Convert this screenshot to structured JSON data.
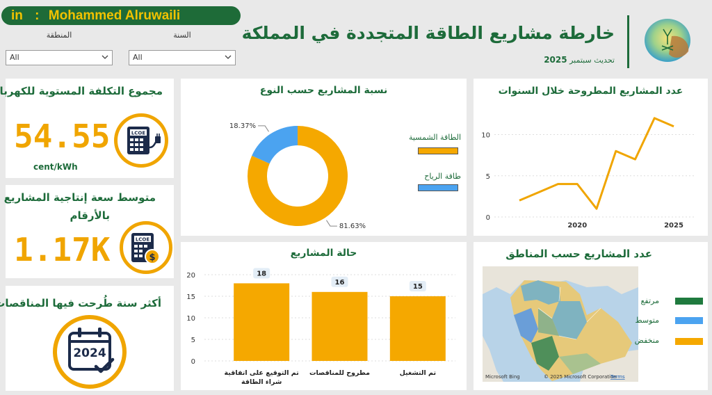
{
  "header": {
    "linkedin_label": "in",
    "linkedin_sep": ":",
    "author": "Mohammed Alruwaili",
    "title": "خارطة مشاريع الطاقة المتجددة في المملكة",
    "update_prefix": "تحديث سبتمبر",
    "update_year": "2025"
  },
  "filters": {
    "region": {
      "label": "المنطقة",
      "value": "All"
    },
    "year": {
      "label": "السنة",
      "value": "All"
    }
  },
  "kpis": {
    "lcoe": {
      "title": "مجموع التكلفة المستوية للكهرباء",
      "value": "54.55",
      "unit": "cent/kWh",
      "icon_label": "LCOE"
    },
    "capacity": {
      "title_line1": "متوسط سعة إنتاجية المشاريع",
      "title_line2": "بالأرقام",
      "value": "1.17K",
      "icon_label": "LCOE"
    },
    "top_year": {
      "title": "أكثر سنة طُرحت فيها المناقصات",
      "value": "2024"
    }
  },
  "colors": {
    "solar": "#f5a800",
    "wind": "#4ba3f0",
    "high": "#1f7a3e",
    "medium": "#4ba3f0",
    "low": "#f5a800",
    "brand": "#1d6b3a"
  },
  "chart_data": [
    {
      "id": "donut",
      "type": "pie",
      "title": "نسبة المشاريع حسب النوع",
      "slices": [
        {
          "name": "الطاقة الشمسية",
          "value": 81.63,
          "label": "81.63%"
        },
        {
          "name": "طاقة الرياح",
          "value": 18.37,
          "label": "18.37%"
        }
      ]
    },
    {
      "id": "line",
      "type": "line",
      "title": "عدد المشاريع المطروحة خلال السنوات",
      "x": [
        2017,
        2018,
        2019,
        2020,
        2021,
        2022,
        2023,
        2024,
        2025
      ],
      "values": [
        2,
        3,
        4,
        4,
        1,
        8,
        7,
        12,
        11
      ],
      "xticks": [
        "2020",
        "2025"
      ],
      "yticks": [
        "0",
        "5",
        "10"
      ],
      "ylim": [
        0,
        13
      ]
    },
    {
      "id": "bar",
      "type": "bar",
      "title": "حالة المشاريع",
      "categories": [
        {
          "line1": "تم التوقيع على اتفاقية",
          "line2": "شراء الطاقة"
        },
        {
          "line1": "مطروح للمناقصات",
          "line2": ""
        },
        {
          "line1": "تم التشغيل",
          "line2": ""
        }
      ],
      "values": [
        18,
        16,
        15
      ],
      "yticks": [
        "0",
        "5",
        "10",
        "15",
        "20"
      ],
      "ylim": [
        0,
        20
      ]
    }
  ],
  "map": {
    "title": "عدد المشاريع حسب المناطق",
    "legend": [
      {
        "label": "مرتفع",
        "color": "#1f7a3e"
      },
      {
        "label": "متوسط",
        "color": "#4ba3f0"
      },
      {
        "label": "منخفض",
        "color": "#f5a800"
      }
    ],
    "attribution_left": "Microsoft Bing",
    "attribution_right": "© 2025 Microsoft Corporation",
    "attribution_terms": "Terms"
  }
}
